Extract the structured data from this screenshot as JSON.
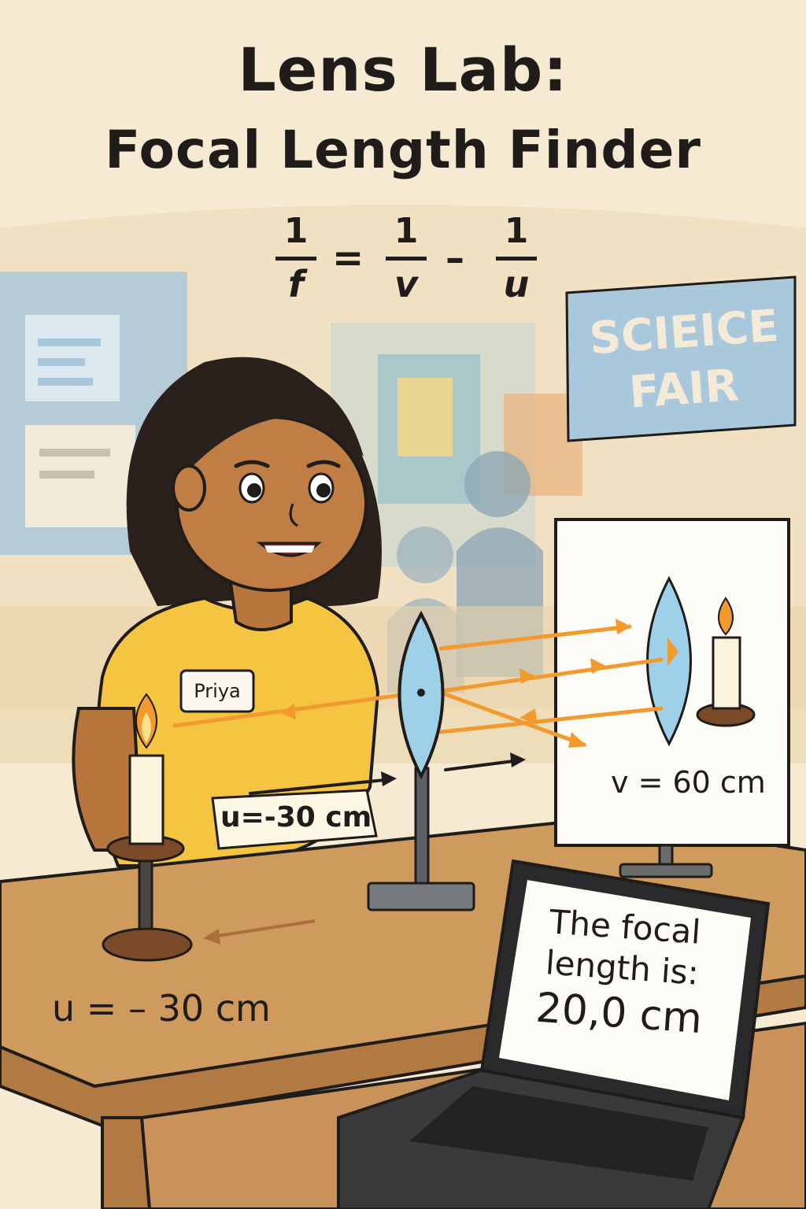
{
  "title": {
    "line1": "Lens Lab:",
    "line2": "Focal Length Finder"
  },
  "equation": {
    "lhs_num": "1",
    "lhs_den": "f",
    "equals": "=",
    "t1_num": "1",
    "t1_den": "v",
    "minus": "–",
    "t2_num": "1",
    "t2_den": "u"
  },
  "banner": {
    "line1": "SCIEICE",
    "line2": "FAIR"
  },
  "name_tag": "Priya",
  "object_distance_board": "u=-30 cm",
  "image_distance": "v = 60 cm",
  "object_distance_table": "u = – 30 cm",
  "laptop": {
    "line1": "The focal",
    "line2": "length is:",
    "line3": "20,0 cm"
  },
  "colors": {
    "background": "#f6ead3",
    "banner": "#a9c8dc",
    "shirt": "#f5c542",
    "table": "#cf9a5e",
    "ray": "#f29a2e",
    "lens": "#9fd0ea"
  }
}
